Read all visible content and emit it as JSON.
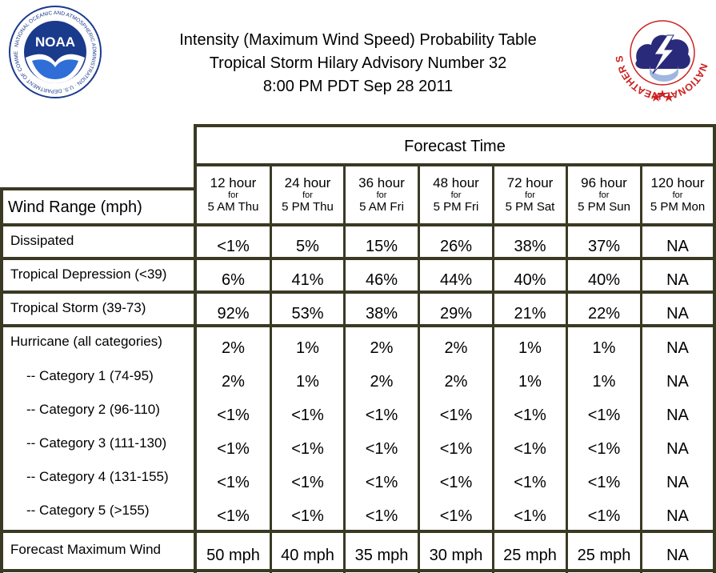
{
  "header": {
    "title_lines": [
      "Intensity (Maximum Wind Speed) Probability Table",
      "Tropical Storm Hilary Advisory Number 32",
      "8:00 PM PDT Sep 28 2011"
    ],
    "noaa_logo": {
      "text": "NOAA",
      "ring_text": "NATIONAL OCEANIC AND ATMOSPHERIC ADMINISTRATION · U.S. DEPARTMENT OF COMMERCE"
    },
    "nws_logo": {
      "ring_text": "NATIONAL WEATHER SERVICE"
    },
    "colors": {
      "noaa_blue": "#1a3a8c",
      "nws_red": "#cc2222",
      "nws_cloud": "#2a2a7a",
      "grid_line": "#3a3a24"
    }
  },
  "table": {
    "forecast_time_label": "Forecast Time",
    "wind_range_label": "Wind Range (mph)",
    "columns": [
      {
        "hours": "12 hour",
        "for": "for",
        "when": "5 AM Thu"
      },
      {
        "hours": "24 hour",
        "for": "for",
        "when": "5 PM Thu"
      },
      {
        "hours": "36 hour",
        "for": "for",
        "when": "5 AM Fri"
      },
      {
        "hours": "48 hour",
        "for": "for",
        "when": "5 PM Fri"
      },
      {
        "hours": "72 hour",
        "for": "for",
        "when": "5 PM Sat"
      },
      {
        "hours": "96 hour",
        "for": "for",
        "when": "5 PM Sun"
      },
      {
        "hours": "120 hour",
        "for": "for",
        "when": "5 PM Mon"
      }
    ],
    "rows": [
      {
        "label": "Dissipated",
        "values": [
          "<1%",
          "5%",
          "15%",
          "26%",
          "38%",
          "37%",
          "NA"
        ]
      },
      {
        "label": "Tropical Depression (<39)",
        "values": [
          "6%",
          "41%",
          "46%",
          "44%",
          "40%",
          "40%",
          "NA"
        ]
      },
      {
        "label": "Tropical Storm (39-73)",
        "values": [
          "92%",
          "53%",
          "38%",
          "29%",
          "21%",
          "22%",
          "NA"
        ]
      },
      {
        "label": "Hurricane (all categories)",
        "values": [
          "2%",
          "1%",
          "2%",
          "2%",
          "1%",
          "1%",
          "NA"
        ]
      },
      {
        "label": "-- Category 1 (74-95)",
        "values": [
          "2%",
          "1%",
          "2%",
          "2%",
          "1%",
          "1%",
          "NA"
        ]
      },
      {
        "label": "-- Category 2 (96-110)",
        "values": [
          "<1%",
          "<1%",
          "<1%",
          "<1%",
          "<1%",
          "<1%",
          "NA"
        ]
      },
      {
        "label": "-- Category 3 (111-130)",
        "values": [
          "<1%",
          "<1%",
          "<1%",
          "<1%",
          "<1%",
          "<1%",
          "NA"
        ]
      },
      {
        "label": "-- Category 4 (131-155)",
        "values": [
          "<1%",
          "<1%",
          "<1%",
          "<1%",
          "<1%",
          "<1%",
          "NA"
        ]
      },
      {
        "label": "-- Category 5 (>155)",
        "values": [
          "<1%",
          "<1%",
          "<1%",
          "<1%",
          "<1%",
          "<1%",
          "NA"
        ]
      },
      {
        "label": "Forecast Maximum Wind",
        "values": [
          "50 mph",
          "40 mph",
          "35 mph",
          "30 mph",
          "25 mph",
          "25 mph",
          "NA"
        ]
      }
    ]
  }
}
